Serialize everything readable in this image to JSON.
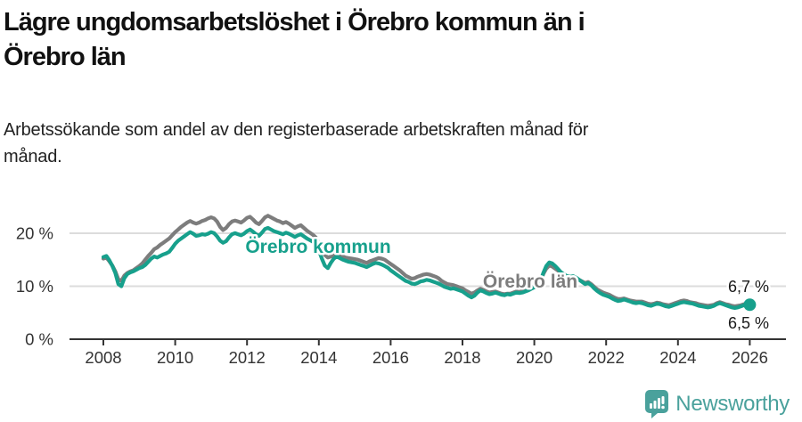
{
  "title": {
    "line1": "Lägre ungdomsarbetslöshet i Örebro kommun än i",
    "line2": "Örebro län"
  },
  "subtitle": {
    "line1": "Arbetssökande som andel av den registerbaserade arbetskraften månad för",
    "line2": "månad."
  },
  "footer": {
    "brand": "Newsworthy",
    "logo_icon": "bar-chart-speech-bubble-icon"
  },
  "colors": {
    "kommun": "#17a08c",
    "lan": "#7d7d7d",
    "grid": "#dcdcdc",
    "axis": "#333333",
    "label_text": "#1a1a1a",
    "brand": "#4aa19c"
  },
  "chart_data": {
    "type": "line",
    "unit": "%",
    "frequency": "monthly",
    "x_start_year": 2008,
    "x_end_year": 2026,
    "grid": "horizontal",
    "legend_position": "inline-annotations",
    "x_axis": {
      "ticks": [
        2008,
        2010,
        2012,
        2014,
        2016,
        2018,
        2020,
        2022,
        2024,
        2026
      ]
    },
    "y_axis": {
      "ticks": [
        {
          "value": 0,
          "label": "0 %"
        },
        {
          "value": 10,
          "label": "10 %"
        },
        {
          "value": 20,
          "label": "20 %"
        }
      ],
      "range": [
        0,
        25
      ]
    },
    "series": [
      {
        "name": "Örebro kommun",
        "color": "#17a08c",
        "end_label": "6,5 %",
        "end_value": 6.5,
        "end_dot": true,
        "values": [
          15.5,
          15.7,
          14.9,
          13.8,
          12.5,
          10.4,
          10.0,
          11.5,
          12.3,
          12.6,
          12.8,
          13.1,
          13.4,
          13.6,
          14.0,
          14.6,
          15.2,
          15.6,
          15.4,
          15.7,
          16.0,
          16.2,
          16.5,
          17.2,
          18.0,
          18.6,
          19.0,
          19.4,
          19.8,
          20.2,
          19.9,
          19.5,
          19.6,
          19.8,
          19.7,
          19.9,
          20.2,
          20.0,
          19.4,
          18.6,
          18.2,
          18.5,
          19.2,
          19.8,
          20.0,
          19.8,
          19.6,
          19.9,
          20.4,
          20.7,
          20.3,
          19.8,
          19.5,
          20.1,
          20.8,
          21.0,
          20.7,
          20.4,
          20.2,
          20.0,
          19.8,
          20.1,
          19.9,
          19.6,
          19.3,
          19.6,
          19.8,
          19.4,
          19.0,
          18.7,
          18.4,
          18.0,
          16.8,
          15.2,
          13.9,
          13.4,
          14.4,
          15.2,
          15.6,
          15.3,
          15.0,
          14.8,
          14.6,
          14.5,
          14.4,
          14.2,
          14.0,
          13.8,
          13.6,
          13.9,
          14.2,
          14.4,
          14.3,
          14.1,
          13.8,
          13.5,
          13.0,
          12.6,
          12.2,
          11.8,
          11.4,
          11.0,
          10.8,
          10.5,
          10.4,
          10.6,
          10.9,
          11.0,
          11.2,
          11.1,
          10.9,
          10.7,
          10.5,
          10.2,
          9.9,
          9.7,
          9.5,
          9.6,
          9.4,
          9.2,
          9.0,
          8.6,
          8.2,
          7.9,
          8.2,
          8.8,
          9.2,
          9.0,
          8.7,
          8.5,
          8.6,
          8.8,
          8.6,
          8.4,
          8.3,
          8.5,
          8.4,
          8.6,
          8.8,
          8.7,
          8.8,
          9.0,
          9.2,
          9.5,
          9.8,
          10.0,
          10.8,
          12.5,
          13.8,
          14.5,
          14.3,
          13.8,
          13.2,
          12.6,
          12.2,
          11.9,
          11.8,
          11.9,
          11.6,
          11.2,
          10.8,
          10.4,
          10.6,
          10.2,
          9.6,
          9.1,
          8.7,
          8.4,
          8.2,
          8.0,
          7.7,
          7.4,
          7.2,
          7.3,
          7.5,
          7.3,
          7.1,
          6.9,
          6.8,
          6.9,
          6.8,
          6.6,
          6.4,
          6.3,
          6.5,
          6.7,
          6.6,
          6.4,
          6.2,
          6.1,
          6.3,
          6.5,
          6.7,
          6.9,
          7.0,
          6.9,
          6.8,
          6.7,
          6.5,
          6.3,
          6.2,
          6.1,
          6.0,
          6.1,
          6.3,
          6.6,
          6.8,
          6.6,
          6.4,
          6.2,
          6.0,
          5.9,
          6.0,
          6.2,
          6.4,
          6.4,
          6.5
        ]
      },
      {
        "name": "Örebro län",
        "color": "#7d7d7d",
        "end_label": "6,7 %",
        "end_value": 6.7,
        "end_dot": false,
        "values": [
          15.2,
          15.4,
          14.7,
          13.9,
          12.8,
          11.3,
          11.0,
          12.0,
          12.5,
          12.8,
          13.0,
          13.4,
          13.8,
          14.3,
          15.0,
          15.7,
          16.3,
          17.0,
          17.3,
          17.8,
          18.2,
          18.6,
          19.0,
          19.6,
          20.2,
          20.7,
          21.2,
          21.6,
          22.0,
          22.3,
          22.0,
          21.8,
          22.0,
          22.3,
          22.5,
          22.8,
          23.0,
          22.8,
          22.2,
          21.2,
          20.6,
          21.0,
          21.7,
          22.2,
          22.4,
          22.2,
          22.0,
          22.4,
          22.9,
          23.1,
          22.6,
          22.0,
          21.7,
          22.3,
          23.0,
          23.3,
          23.0,
          22.7,
          22.4,
          22.2,
          21.9,
          22.1,
          21.8,
          21.4,
          21.0,
          21.3,
          21.5,
          21.0,
          20.5,
          20.1,
          19.7,
          19.2,
          18.0,
          16.8,
          15.9,
          15.4,
          15.6,
          15.9,
          16.1,
          15.8,
          15.6,
          15.4,
          15.3,
          15.2,
          15.1,
          15.0,
          14.8,
          14.6,
          14.4,
          14.7,
          14.9,
          15.1,
          15.3,
          15.2,
          15.0,
          14.6,
          14.2,
          13.8,
          13.4,
          13.0,
          12.5,
          12.0,
          11.7,
          11.4,
          11.5,
          11.8,
          12.0,
          12.2,
          12.3,
          12.2,
          12.0,
          11.8,
          11.5,
          11.0,
          10.7,
          10.4,
          10.3,
          10.2,
          10.0,
          9.8,
          9.6,
          9.2,
          8.9,
          8.6,
          8.8,
          9.2,
          9.5,
          9.3,
          9.0,
          8.8,
          8.9,
          9.0,
          8.8,
          8.6,
          8.5,
          8.6,
          8.6,
          8.8,
          9.0,
          8.9,
          9.1,
          9.3,
          9.5,
          9.8,
          10.0,
          10.2,
          10.9,
          12.3,
          13.3,
          13.9,
          13.7,
          13.3,
          12.9,
          12.4,
          12.0,
          11.8,
          11.7,
          11.8,
          11.5,
          11.2,
          10.9,
          10.6,
          10.8,
          10.4,
          9.9,
          9.4,
          9.1,
          8.8,
          8.6,
          8.4,
          8.1,
          7.8,
          7.6,
          7.6,
          7.7,
          7.5,
          7.3,
          7.2,
          7.1,
          7.1,
          7.1,
          6.9,
          6.7,
          6.6,
          6.7,
          6.9,
          6.8,
          6.6,
          6.5,
          6.4,
          6.6,
          6.8,
          7.0,
          7.2,
          7.3,
          7.2,
          7.0,
          6.9,
          6.8,
          6.6,
          6.5,
          6.4,
          6.3,
          6.4,
          6.5,
          6.8,
          7.0,
          6.8,
          6.6,
          6.5,
          6.3,
          6.2,
          6.3,
          6.4,
          6.6,
          6.6,
          6.7
        ]
      }
    ],
    "annotations": [
      {
        "text": "Örebro kommun",
        "series": "Örebro kommun"
      },
      {
        "text": "Örebro län",
        "series": "Örebro län"
      }
    ]
  }
}
